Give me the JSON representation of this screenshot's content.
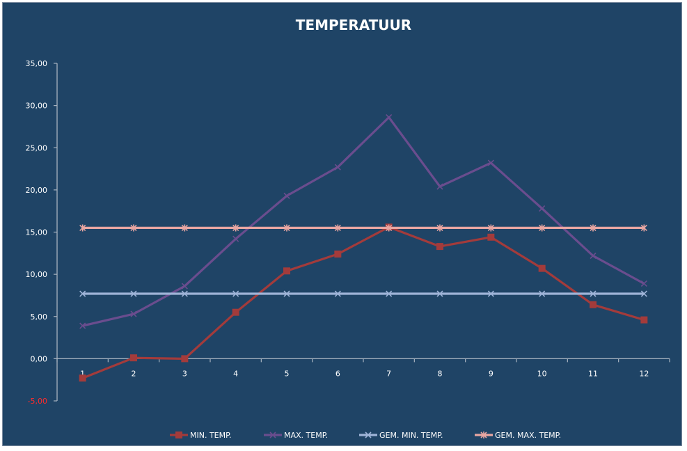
{
  "chart_data": {
    "type": "line",
    "title": "TEMPERATUUR",
    "xlabel": "",
    "ylabel": "",
    "categories": [
      "1",
      "2",
      "3",
      "4",
      "5",
      "6",
      "7",
      "8",
      "9",
      "10",
      "11",
      "12"
    ],
    "ylim": [
      -5,
      35
    ],
    "yticks": [
      -5,
      0,
      5,
      10,
      15,
      20,
      25,
      30,
      35
    ],
    "ytick_labels": [
      "-5,00",
      "0,00",
      "5,00",
      "10,00",
      "15,00",
      "20,00",
      "25,00",
      "30,00",
      "35,00"
    ],
    "grid": false,
    "legend_position": "bottom",
    "series": [
      {
        "name": "MIN. TEMP.",
        "color": "#a33b3b",
        "marker": "square",
        "values": [
          -2.3,
          0.1,
          0.0,
          5.5,
          10.4,
          12.4,
          15.6,
          13.3,
          14.4,
          10.7,
          6.4,
          4.6
        ]
      },
      {
        "name": "MAX. TEMP.",
        "color": "#6a4d8e",
        "marker": "x",
        "values": [
          3.9,
          5.3,
          8.6,
          14.2,
          19.3,
          22.7,
          28.6,
          20.4,
          23.2,
          17.8,
          12.2,
          8.9
        ]
      },
      {
        "name": "GEM. MIN. TEMP.",
        "color": "#9fb4d8",
        "marker": "x",
        "values": [
          7.7,
          7.7,
          7.7,
          7.7,
          7.7,
          7.7,
          7.7,
          7.7,
          7.7,
          7.7,
          7.7,
          7.7
        ]
      },
      {
        "name": "GEM. MAX. TEMP.",
        "color": "#e8a6a2",
        "marker": "star",
        "values": [
          15.5,
          15.5,
          15.5,
          15.5,
          15.5,
          15.5,
          15.5,
          15.5,
          15.5,
          15.5,
          15.5,
          15.5
        ]
      }
    ]
  },
  "colors": {
    "background": "#1f4466",
    "axis": "#a8b3c0",
    "text": "#ffffff",
    "negative_tick": "#ff2b2b"
  }
}
